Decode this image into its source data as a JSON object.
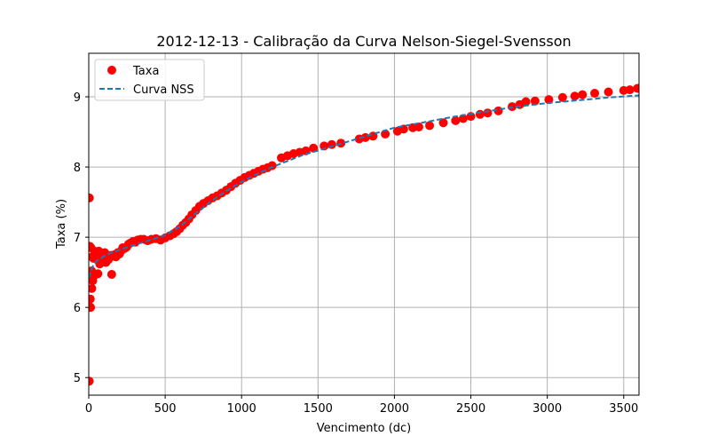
{
  "chart_data": {
    "type": "scatter",
    "title": "2012-12-13 - Calibração da Curva Nelson-Siegel-Svensson",
    "xlabel": "Vencimento (dc)",
    "ylabel": "Taxa (%)",
    "xlim": [
      0,
      3600
    ],
    "ylim": [
      4.75,
      9.62
    ],
    "xticks": [
      0,
      500,
      1000,
      1500,
      2000,
      2500,
      3000,
      3500
    ],
    "yticks": [
      5,
      6,
      7,
      8,
      9
    ],
    "grid": true,
    "legend_position": "top-left",
    "series": [
      {
        "name": "Taxa",
        "kind": "scatter",
        "color": "#ff0000",
        "points": [
          [
            3,
            4.95
          ],
          [
            4,
            7.56
          ],
          [
            7,
            6.87
          ],
          [
            10,
            6.12
          ],
          [
            12,
            6.0
          ],
          [
            15,
            6.85
          ],
          [
            18,
            6.52
          ],
          [
            20,
            6.27
          ],
          [
            22,
            6.72
          ],
          [
            26,
            6.38
          ],
          [
            30,
            6.7
          ],
          [
            34,
            6.45
          ],
          [
            38,
            6.8
          ],
          [
            45,
            6.72
          ],
          [
            55,
            6.68
          ],
          [
            60,
            6.48
          ],
          [
            66,
            6.8
          ],
          [
            72,
            6.62
          ],
          [
            80,
            6.72
          ],
          [
            88,
            6.65
          ],
          [
            95,
            6.7
          ],
          [
            100,
            6.72
          ],
          [
            105,
            6.78
          ],
          [
            112,
            6.64
          ],
          [
            120,
            6.72
          ],
          [
            128,
            6.68
          ],
          [
            135,
            6.72
          ],
          [
            145,
            6.74
          ],
          [
            150,
            6.47
          ],
          [
            158,
            6.73
          ],
          [
            168,
            6.75
          ],
          [
            178,
            6.72
          ],
          [
            190,
            6.78
          ],
          [
            200,
            6.76
          ],
          [
            210,
            6.8
          ],
          [
            222,
            6.85
          ],
          [
            235,
            6.84
          ],
          [
            248,
            6.86
          ],
          [
            260,
            6.9
          ],
          [
            275,
            6.92
          ],
          [
            290,
            6.94
          ],
          [
            305,
            6.93
          ],
          [
            320,
            6.96
          ],
          [
            340,
            6.97
          ],
          [
            360,
            6.97
          ],
          [
            385,
            6.95
          ],
          [
            410,
            6.97
          ],
          [
            440,
            6.98
          ],
          [
            470,
            6.96
          ],
          [
            500,
            6.99
          ],
          [
            530,
            7.02
          ],
          [
            555,
            7.05
          ],
          [
            575,
            7.08
          ],
          [
            595,
            7.12
          ],
          [
            615,
            7.17
          ],
          [
            635,
            7.21
          ],
          [
            655,
            7.26
          ],
          [
            675,
            7.32
          ],
          [
            700,
            7.38
          ],
          [
            725,
            7.44
          ],
          [
            750,
            7.48
          ],
          [
            780,
            7.52
          ],
          [
            810,
            7.56
          ],
          [
            840,
            7.59
          ],
          [
            870,
            7.63
          ],
          [
            900,
            7.67
          ],
          [
            930,
            7.72
          ],
          [
            960,
            7.77
          ],
          [
            990,
            7.81
          ],
          [
            1020,
            7.85
          ],
          [
            1050,
            7.88
          ],
          [
            1080,
            7.91
          ],
          [
            1110,
            7.94
          ],
          [
            1140,
            7.97
          ],
          [
            1170,
            7.99
          ],
          [
            1200,
            8.02
          ],
          [
            1260,
            8.13
          ],
          [
            1300,
            8.16
          ],
          [
            1340,
            8.19
          ],
          [
            1380,
            8.21
          ],
          [
            1420,
            8.23
          ],
          [
            1470,
            8.27
          ],
          [
            1540,
            8.3
          ],
          [
            1590,
            8.32
          ],
          [
            1650,
            8.34
          ],
          [
            1770,
            8.4
          ],
          [
            1810,
            8.42
          ],
          [
            1860,
            8.44
          ],
          [
            1940,
            8.47
          ],
          [
            2020,
            8.51
          ],
          [
            2060,
            8.54
          ],
          [
            2120,
            8.56
          ],
          [
            2160,
            8.57
          ],
          [
            2230,
            8.59
          ],
          [
            2320,
            8.63
          ],
          [
            2400,
            8.66
          ],
          [
            2450,
            8.69
          ],
          [
            2500,
            8.72
          ],
          [
            2560,
            8.75
          ],
          [
            2610,
            8.77
          ],
          [
            2680,
            8.8
          ],
          [
            2770,
            8.86
          ],
          [
            2820,
            8.89
          ],
          [
            2860,
            8.93
          ],
          [
            2920,
            8.94
          ],
          [
            3010,
            8.96
          ],
          [
            3100,
            8.99
          ],
          [
            3180,
            9.01
          ],
          [
            3230,
            9.03
          ],
          [
            3310,
            9.05
          ],
          [
            3400,
            9.07
          ],
          [
            3500,
            9.09
          ],
          [
            3540,
            9.1
          ],
          [
            3590,
            9.12
          ]
        ]
      },
      {
        "name": "Curva NSS",
        "kind": "line",
        "style": "dashed",
        "color": "#1f77b4",
        "points": [
          [
            0,
            6.42
          ],
          [
            25,
            6.58
          ],
          [
            50,
            6.66
          ],
          [
            100,
            6.73
          ],
          [
            150,
            6.78
          ],
          [
            200,
            6.82
          ],
          [
            300,
            6.89
          ],
          [
            400,
            6.96
          ],
          [
            500,
            7.03
          ],
          [
            600,
            7.16
          ],
          [
            700,
            7.34
          ],
          [
            800,
            7.51
          ],
          [
            900,
            7.66
          ],
          [
            1000,
            7.79
          ],
          [
            1100,
            7.9
          ],
          [
            1200,
            8.0
          ],
          [
            1400,
            8.17
          ],
          [
            1600,
            8.3
          ],
          [
            1800,
            8.43
          ],
          [
            2000,
            8.56
          ],
          [
            2200,
            8.64
          ],
          [
            2400,
            8.72
          ],
          [
            2600,
            8.79
          ],
          [
            2800,
            8.86
          ],
          [
            3000,
            8.91
          ],
          [
            3200,
            8.95
          ],
          [
            3400,
            8.99
          ],
          [
            3600,
            9.02
          ]
        ]
      }
    ]
  }
}
